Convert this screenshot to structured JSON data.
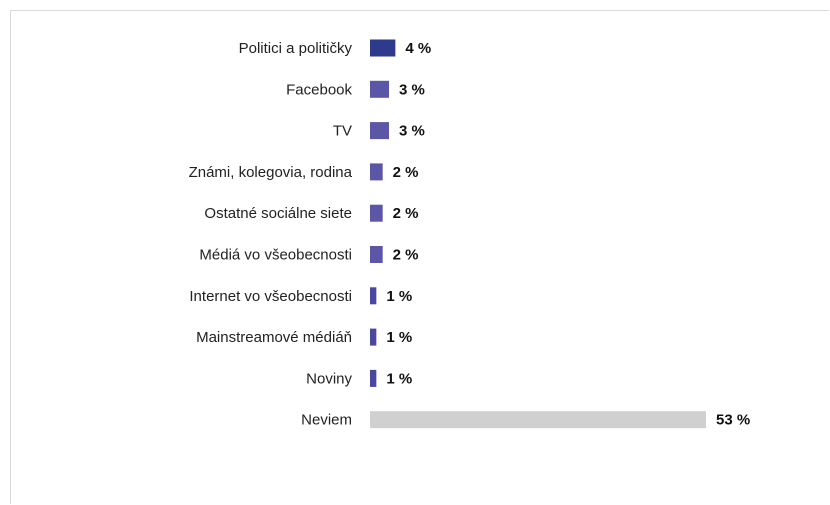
{
  "chart_data": {
    "type": "bar",
    "orientation": "horizontal",
    "categories": [
      "Politici a političky",
      "Facebook",
      "TV",
      "Známi, kolegovia, rodina",
      "Ostatné sociálne siete",
      "Médiá vo všeobecnosti",
      "Internet vo všeobecnosti",
      "Mainstreamové médiáň",
      "Noviny",
      "Neviem"
    ],
    "values": [
      4,
      3,
      3,
      2,
      2,
      2,
      1,
      1,
      1,
      53
    ],
    "value_labels": [
      "4 %",
      "3 %",
      "3 %",
      "2 %",
      "2 %",
      "2 %",
      "1 %",
      "1 %",
      "1 %",
      "53 %"
    ],
    "bar_colors": [
      "#2e3a8c",
      "#5b56a6",
      "#5b56a6",
      "#5b56a6",
      "#5b56a6",
      "#5b56a6",
      "#4b47a0",
      "#4b47a0",
      "#4b47a0",
      "#d0d0d0"
    ],
    "title": "",
    "xlabel": "",
    "ylabel": "",
    "xlim": [
      0,
      53
    ],
    "grid": false,
    "legend": "none"
  }
}
